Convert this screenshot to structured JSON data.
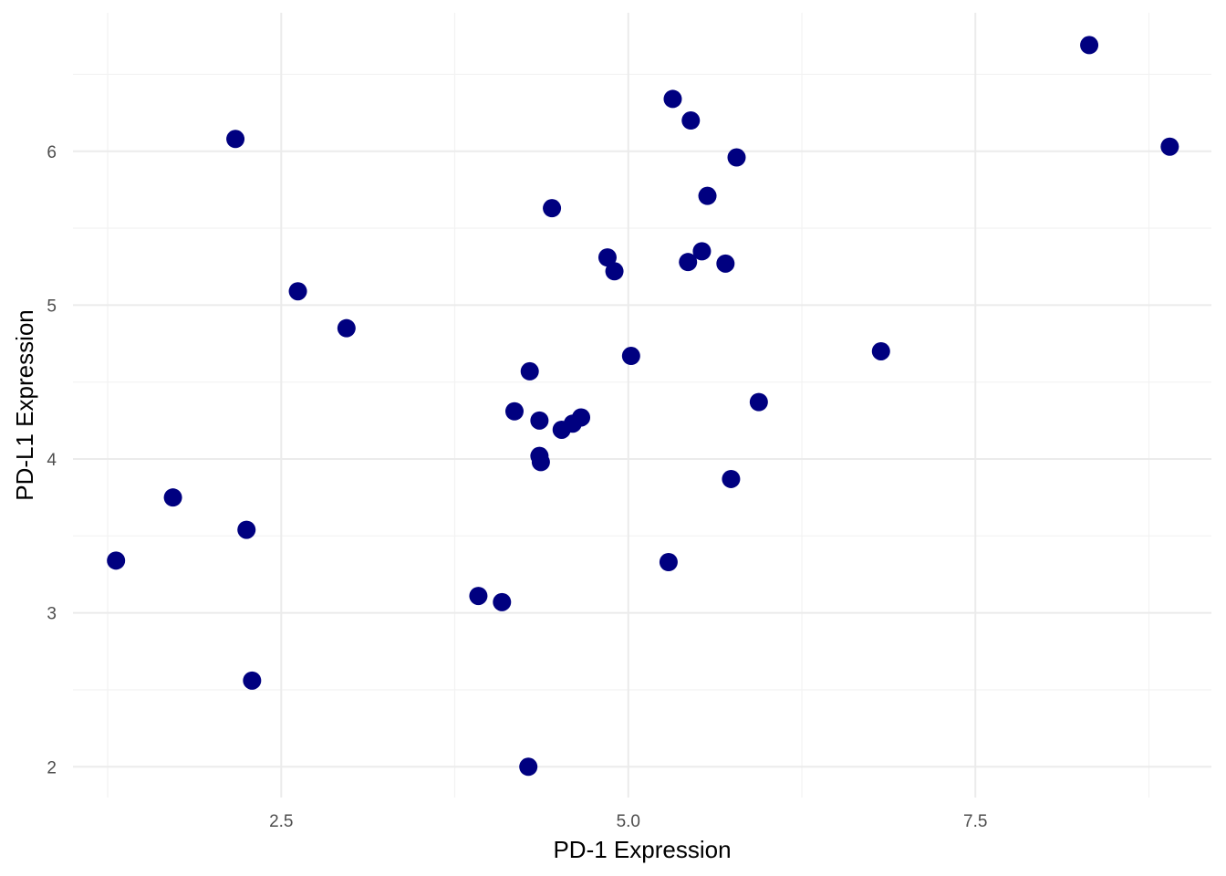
{
  "chart_data": {
    "type": "scatter",
    "title": "",
    "xlabel": "PD-1 Expression",
    "ylabel": "PD-L1 Expression",
    "xlim": [
      1.0,
      9.2
    ],
    "ylim": [
      1.8,
      6.9
    ],
    "x_ticks": [
      2.5,
      5.0,
      7.5
    ],
    "x_tick_labels": [
      "2.5",
      "5.0",
      "7.5"
    ],
    "y_ticks": [
      2,
      3,
      4,
      5,
      6
    ],
    "y_tick_labels": [
      "2",
      "3",
      "4",
      "5",
      "6"
    ],
    "grid": true,
    "point_color": "#000080",
    "points": [
      {
        "x": 8.32,
        "y": 6.69
      },
      {
        "x": 8.9,
        "y": 6.03
      },
      {
        "x": 5.32,
        "y": 6.34
      },
      {
        "x": 5.45,
        "y": 6.2
      },
      {
        "x": 2.17,
        "y": 6.08
      },
      {
        "x": 5.78,
        "y": 5.96
      },
      {
        "x": 5.57,
        "y": 5.71
      },
      {
        "x": 4.45,
        "y": 5.63
      },
      {
        "x": 4.85,
        "y": 5.31
      },
      {
        "x": 4.9,
        "y": 5.22
      },
      {
        "x": 5.53,
        "y": 5.35
      },
      {
        "x": 5.43,
        "y": 5.28
      },
      {
        "x": 5.7,
        "y": 5.27
      },
      {
        "x": 2.62,
        "y": 5.09
      },
      {
        "x": 2.97,
        "y": 4.85
      },
      {
        "x": 5.02,
        "y": 4.67
      },
      {
        "x": 6.82,
        "y": 4.7
      },
      {
        "x": 4.29,
        "y": 4.57
      },
      {
        "x": 5.94,
        "y": 4.37
      },
      {
        "x": 4.18,
        "y": 4.31
      },
      {
        "x": 4.36,
        "y": 4.25
      },
      {
        "x": 4.66,
        "y": 4.27
      },
      {
        "x": 4.6,
        "y": 4.23
      },
      {
        "x": 4.52,
        "y": 4.19
      },
      {
        "x": 4.36,
        "y": 4.02
      },
      {
        "x": 4.37,
        "y": 3.98
      },
      {
        "x": 5.74,
        "y": 3.87
      },
      {
        "x": 1.72,
        "y": 3.75
      },
      {
        "x": 2.25,
        "y": 3.54
      },
      {
        "x": 1.31,
        "y": 3.34
      },
      {
        "x": 5.29,
        "y": 3.33
      },
      {
        "x": 3.92,
        "y": 3.11
      },
      {
        "x": 4.09,
        "y": 3.07
      },
      {
        "x": 2.29,
        "y": 2.56
      },
      {
        "x": 4.28,
        "y": 2.0
      }
    ]
  }
}
